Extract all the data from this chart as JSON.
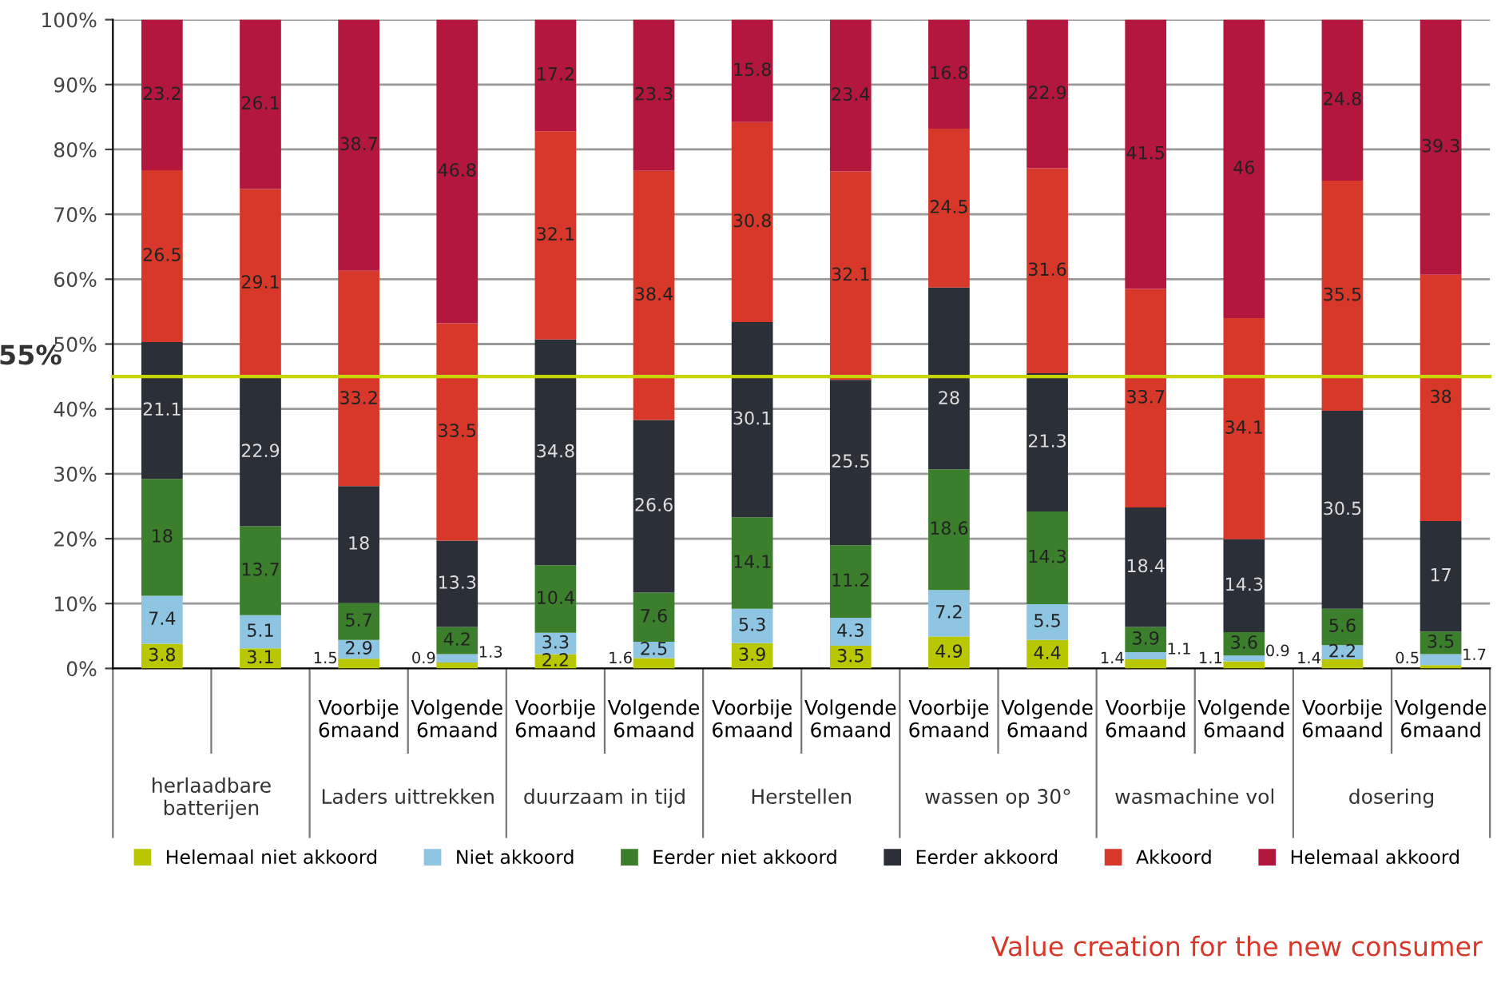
{
  "chart_data": {
    "type": "bar",
    "stacked": true,
    "categories": [
      null,
      null,
      "Voorbije\n6maand",
      "Volgende\n6maand",
      "Voorbije\n6maand",
      "Volgende\n6maand",
      "Voorbije\n6maand",
      "Volgende\n6maand",
      "Voorbije\n6maand",
      "Volgende\n6maand",
      "Voorbije\n6maand",
      "Volgende\n6maand",
      "Voorbije\n6maand",
      "Volgende\n6maand"
    ],
    "series": [
      {
        "name": "Helemaal niet akkoord",
        "color": "#b8c700",
        "values": [
          3.8,
          3.1,
          1.5,
          0.9,
          2.2,
          1.6,
          3.9,
          3.5,
          4.9,
          4.4,
          1.4,
          1.1,
          1.4,
          0.5
        ]
      },
      {
        "name": "Niet akkoord",
        "color": "#8ec5e3",
        "values": [
          7.4,
          5.1,
          2.9,
          1.3,
          3.3,
          2.5,
          5.3,
          4.3,
          7.2,
          5.5,
          1.1,
          0.9,
          2.2,
          1.7
        ]
      },
      {
        "name": "Eerder niet akkoord",
        "color": "#3b7f2c",
        "values": [
          18,
          13.7,
          5.7,
          4.2,
          10.4,
          7.6,
          14.1,
          11.2,
          18.6,
          14.3,
          3.9,
          3.6,
          5.6,
          3.5
        ]
      },
      {
        "name": "Eerder akkoord",
        "color": "#2b2f37",
        "values": [
          21.1,
          22.9,
          18,
          13.3,
          34.8,
          26.6,
          30.1,
          25.5,
          28,
          21.3,
          18.4,
          14.3,
          30.5,
          17
        ]
      },
      {
        "name": "Akkoord",
        "color": "#d8382a",
        "values": [
          26.5,
          29.1,
          33.2,
          33.5,
          32.1,
          38.4,
          30.8,
          32.1,
          24.5,
          31.6,
          33.7,
          34.1,
          35.5,
          38
        ]
      },
      {
        "name": "Helemaal akkoord",
        "color": "#b3173d",
        "values": [
          23.2,
          26.1,
          38.7,
          46.8,
          17.2,
          23.3,
          15.8,
          23.4,
          16.8,
          22.9,
          41.5,
          46,
          24.8,
          39.3
        ]
      }
    ],
    "ylim": [
      0,
      100
    ],
    "yticks": [
      {
        "value": 0,
        "label": "0%"
      },
      {
        "value": 10,
        "label": "10%"
      },
      {
        "value": 20,
        "label": "20%"
      },
      {
        "value": 30,
        "label": "30%"
      },
      {
        "value": 40,
        "label": "40%"
      },
      {
        "value": 50,
        "label": "50%"
      },
      {
        "value": 60,
        "label": "60%"
      },
      {
        "value": 70,
        "label": "70%"
      },
      {
        "value": 80,
        "label": "80%"
      },
      {
        "value": 90,
        "label": "90%"
      },
      {
        "value": 100,
        "label": "100%"
      }
    ],
    "ref_lines": [
      {
        "axis": "y",
        "value": 45,
        "color": "#c8d400"
      }
    ],
    "annotations": [
      "herlaadbare\nbatterijen",
      "Laders uittrekken",
      "duurzaam in tijd",
      "Herstellen",
      "wassen op 30°",
      "wasmachine vol",
      "dosering",
      "55%",
      "Value creation for the new consumer"
    ],
    "data_labels": true,
    "grid": "y",
    "legend": "bottom"
  }
}
